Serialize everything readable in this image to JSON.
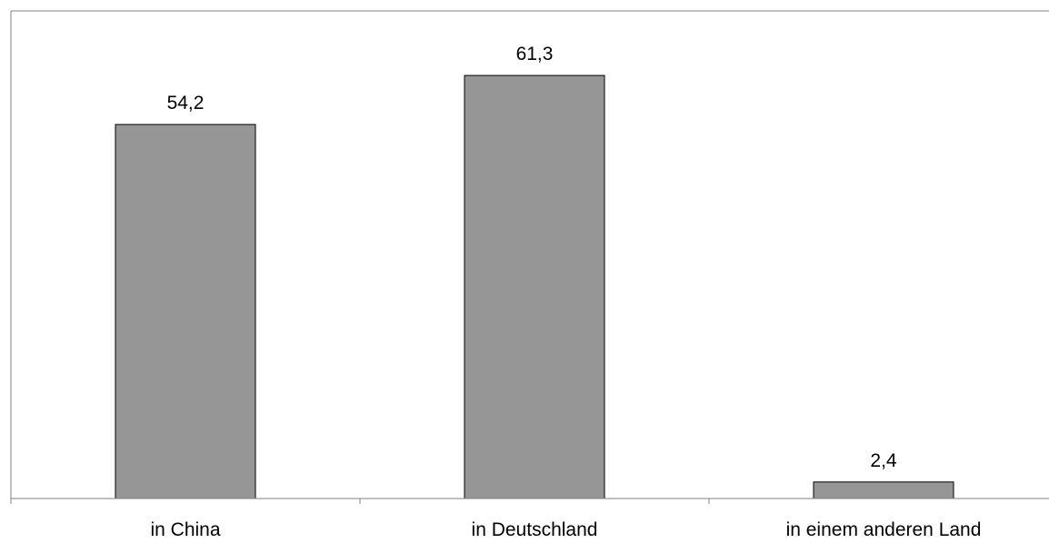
{
  "chart_data": {
    "type": "bar",
    "categories": [
      "in China",
      "in Deutschland",
      "in einem anderen Land"
    ],
    "values": [
      54.2,
      61.3,
      2.4
    ],
    "value_labels": [
      "54,2",
      "61,3",
      "2,4"
    ],
    "title": "",
    "xlabel": "",
    "ylabel": "",
    "ylim": [
      0,
      70
    ],
    "grid": false,
    "legend": "none",
    "colors": {
      "bar_fill": "#969696",
      "bar_stroke": "#000000",
      "axis": "#808080",
      "text": "#000000"
    }
  }
}
